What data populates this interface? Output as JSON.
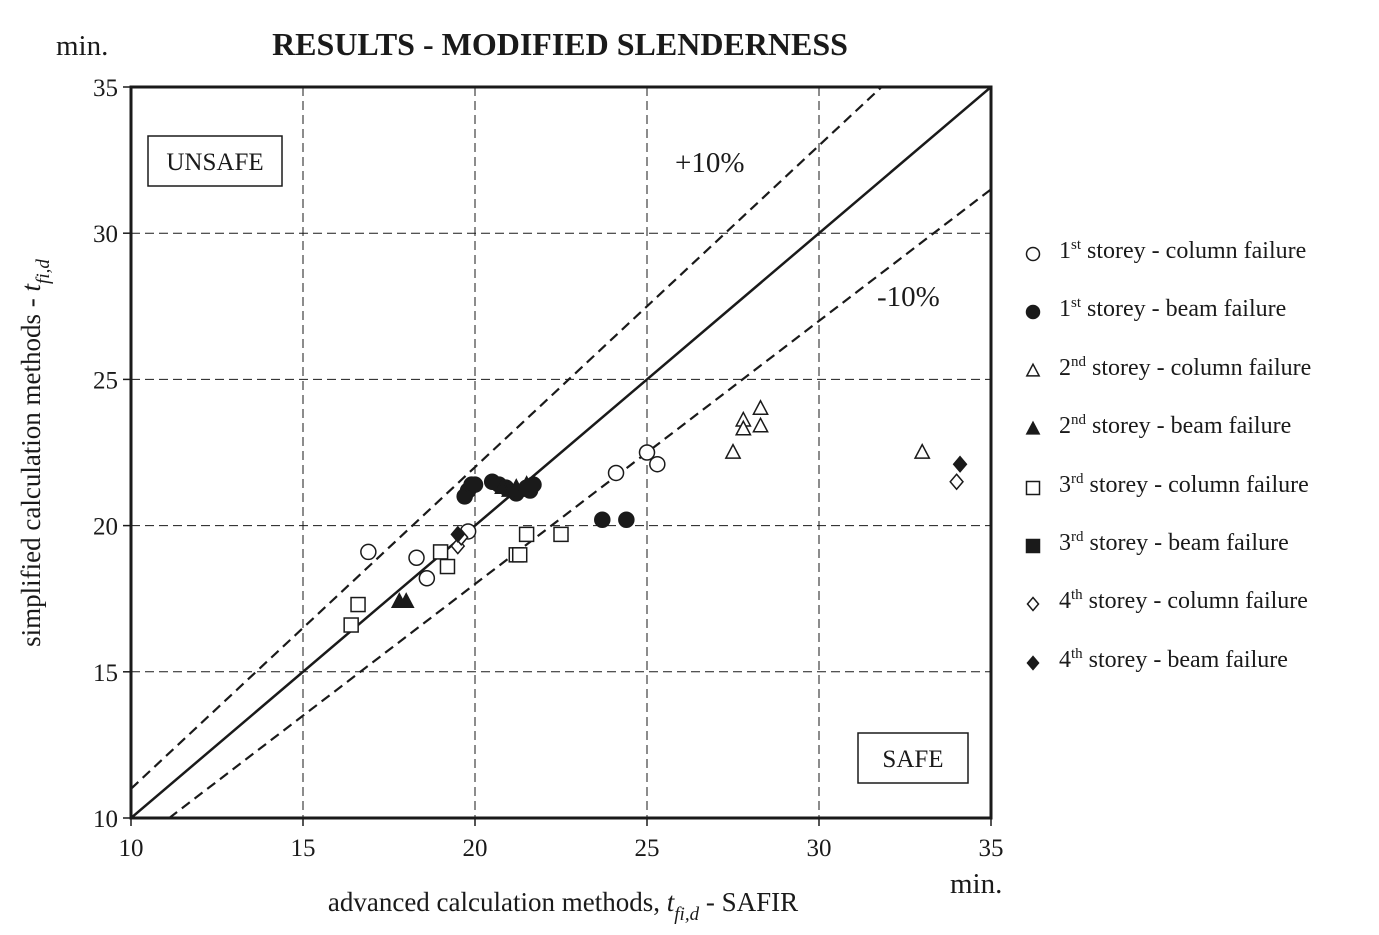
{
  "chart_data": {
    "type": "scatter",
    "title": "RESULTS - MODIFIED SLENDERNESS",
    "y_unit": "min.",
    "x_unit": "min.",
    "xlabel": {
      "prefix": "advanced calculation methods, ",
      "var": "t",
      "sub": "fi,d",
      "suffix": " - SAFIR"
    },
    "ylabel": {
      "prefix": "simplified calculation methods - ",
      "var": "t",
      "sub": "fi,d"
    },
    "xlim": [
      10,
      35
    ],
    "ylim": [
      10,
      35
    ],
    "xticks": [
      "10",
      "15",
      "20",
      "25",
      "30",
      "35"
    ],
    "yticks": [
      "10",
      "15",
      "20",
      "25",
      "30",
      "35"
    ],
    "grid": true,
    "legend_position": "right",
    "annotations": {
      "unsafe": "UNSAFE",
      "safe": "SAFE",
      "plus10": "+10%",
      "minus10": "-10%"
    },
    "reference_lines": [
      {
        "label": "y = x",
        "slope": 1.0,
        "style": "solid"
      },
      {
        "label": "+10%",
        "slope": 1.1,
        "style": "dashed"
      },
      {
        "label": "-10%",
        "slope": 0.9,
        "style": "dashed"
      }
    ],
    "series": [
      {
        "ordinal": "1",
        "sup": "st",
        "rest": " storey - column failure",
        "marker": "circle",
        "filled": false,
        "points": [
          [
            16.9,
            19.1
          ],
          [
            18.3,
            18.9
          ],
          [
            18.6,
            18.2
          ],
          [
            19.8,
            19.8
          ],
          [
            24.1,
            21.8
          ],
          [
            25.0,
            22.5
          ],
          [
            25.3,
            22.1
          ]
        ]
      },
      {
        "ordinal": "1",
        "sup": "st",
        "rest": " storey - beam failure",
        "marker": "circle",
        "filled": true,
        "points": [
          [
            19.7,
            21.0
          ],
          [
            19.8,
            21.2
          ],
          [
            19.9,
            21.4
          ],
          [
            20.0,
            21.4
          ],
          [
            20.5,
            21.5
          ],
          [
            20.7,
            21.4
          ],
          [
            20.9,
            21.3
          ],
          [
            21.2,
            21.1
          ],
          [
            21.5,
            21.3
          ],
          [
            21.6,
            21.2
          ],
          [
            21.7,
            21.4
          ],
          [
            23.7,
            20.2
          ],
          [
            24.4,
            20.2
          ]
        ]
      },
      {
        "ordinal": "2",
        "sup": "nd",
        "rest": " storey - column failure",
        "marker": "triangle",
        "filled": false,
        "points": [
          [
            27.5,
            22.5
          ],
          [
            27.8,
            23.6
          ],
          [
            27.8,
            23.3
          ],
          [
            28.3,
            24.0
          ],
          [
            28.3,
            23.4
          ],
          [
            33.0,
            22.5
          ]
        ]
      },
      {
        "ordinal": "2",
        "sup": "nd",
        "rest": " storey - beam failure",
        "marker": "triangle",
        "filled": true,
        "points": [
          [
            17.8,
            17.4
          ],
          [
            18.0,
            17.4
          ],
          [
            20.8,
            21.3
          ],
          [
            21.0,
            21.2
          ],
          [
            21.2,
            21.3
          ],
          [
            21.4,
            21.2
          ],
          [
            21.5,
            21.4
          ]
        ]
      },
      {
        "ordinal": "3",
        "sup": "rd",
        "rest": " storey - column failure",
        "marker": "square",
        "filled": false,
        "points": [
          [
            16.4,
            16.6
          ],
          [
            16.6,
            17.3
          ],
          [
            19.0,
            19.1
          ],
          [
            19.2,
            18.6
          ],
          [
            21.2,
            19.0
          ],
          [
            21.3,
            19.0
          ],
          [
            21.5,
            19.7
          ],
          [
            22.5,
            19.7
          ]
        ]
      },
      {
        "ordinal": "3",
        "sup": "rd",
        "rest": " storey - beam failure",
        "marker": "square",
        "filled": true,
        "points": []
      },
      {
        "ordinal": "4",
        "sup": "th",
        "rest": " storey - column failure",
        "marker": "diamond",
        "filled": false,
        "points": [
          [
            19.5,
            19.3
          ],
          [
            19.6,
            19.6
          ],
          [
            34.0,
            21.5
          ]
        ]
      },
      {
        "ordinal": "4",
        "sup": "th",
        "rest": " storey - beam failure",
        "marker": "diamond",
        "filled": true,
        "points": [
          [
            19.5,
            19.7
          ],
          [
            34.1,
            22.1
          ]
        ]
      }
    ],
    "style": {
      "ink": "#1a1a1a",
      "background": "#ffffff"
    }
  }
}
